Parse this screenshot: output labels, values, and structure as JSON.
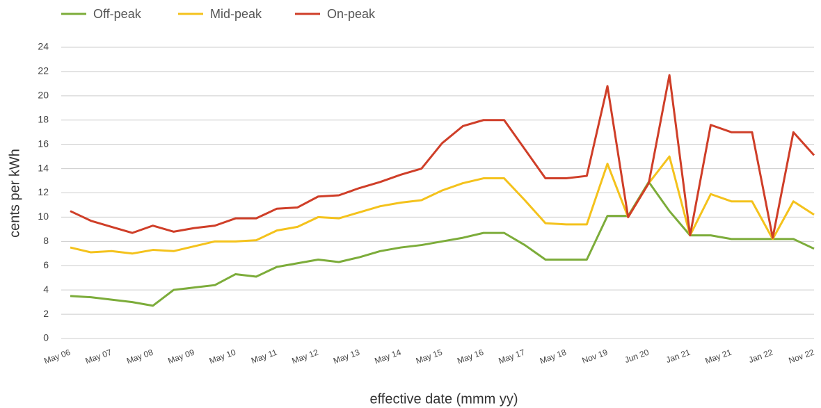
{
  "chart_data": {
    "type": "line",
    "x_label": "effective date (mmm yy)",
    "y_label": "cents per kWh",
    "categories": [
      "May 06",
      null,
      "May 07",
      null,
      "May 08",
      null,
      "May 09",
      null,
      "May 10",
      null,
      "May 11",
      null,
      "May 12",
      null,
      "May 13",
      null,
      "May 14",
      null,
      "May 15",
      null,
      "May 16",
      null,
      "May 17",
      null,
      "May 18",
      null,
      "Nov 19",
      null,
      "Jun 20",
      null,
      "Jan 21",
      null,
      "May 21",
      null,
      "Jan 22",
      null,
      "Nov 22"
    ],
    "series": [
      {
        "name": "Off-peak",
        "color": "#7cac3a",
        "values": [
          3.5,
          3.4,
          3.2,
          3.0,
          2.7,
          4.0,
          4.2,
          4.4,
          5.3,
          5.1,
          5.9,
          6.2,
          6.5,
          6.3,
          6.7,
          7.2,
          7.5,
          7.7,
          8.0,
          8.3,
          8.7,
          8.7,
          7.7,
          6.5,
          6.5,
          6.5,
          10.1,
          10.1,
          12.9,
          10.5,
          8.5,
          8.5,
          8.2,
          8.2,
          8.2,
          8.2,
          7.4
        ]
      },
      {
        "name": "Mid-peak",
        "color": "#f4c21c",
        "values": [
          7.5,
          7.1,
          7.2,
          7.0,
          7.3,
          7.2,
          7.6,
          8.0,
          8.0,
          8.1,
          8.9,
          9.2,
          10.0,
          9.9,
          10.4,
          10.9,
          11.2,
          11.4,
          12.2,
          12.8,
          13.2,
          13.2,
          11.4,
          9.5,
          9.4,
          9.4,
          14.4,
          10.0,
          12.8,
          15.0,
          8.5,
          11.9,
          11.3,
          11.3,
          8.2,
          11.3,
          10.2
        ]
      },
      {
        "name": "On-peak",
        "color": "#cf3e28",
        "values": [
          10.5,
          9.7,
          9.2,
          8.7,
          9.3,
          8.8,
          9.1,
          9.3,
          9.9,
          9.9,
          10.7,
          10.8,
          11.7,
          11.8,
          12.4,
          12.9,
          13.5,
          14.0,
          16.1,
          17.5,
          18.0,
          18.0,
          15.6,
          13.2,
          13.2,
          13.4,
          20.8,
          10.0,
          12.8,
          21.7,
          8.5,
          17.6,
          17.0,
          17.0,
          8.3,
          17.0,
          15.1
        ]
      }
    ],
    "ylim": [
      0,
      24
    ],
    "yticks": [
      0,
      2,
      4,
      6,
      8,
      10,
      12,
      14,
      16,
      18,
      20,
      22,
      24
    ],
    "grid": true,
    "legend": "top-left"
  }
}
